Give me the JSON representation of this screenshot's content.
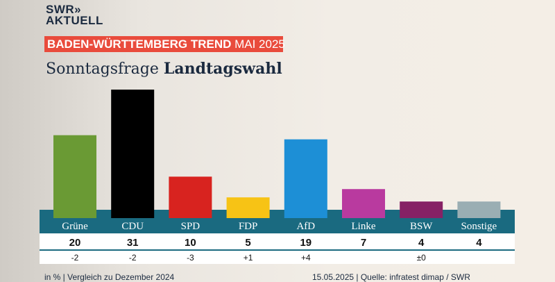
{
  "logo": {
    "line1": "SWR»",
    "line2": "AKTUELL"
  },
  "banner": {
    "bold": "BADEN-WÜRTTEMBERG TREND",
    "normal": "MAI 2025"
  },
  "title": {
    "normal": "Sonntagsfrage",
    "bold": "Landtagswahl"
  },
  "footer": {
    "left": "in % | Vergleich zu Dezember 2024",
    "right": "15.05.2025 | Quelle: infratest dimap / SWR"
  },
  "chart_data": {
    "type": "bar",
    "categories": [
      "Grüne",
      "CDU",
      "SPD",
      "FDP",
      "AfD",
      "Linke",
      "BSW",
      "Sonstige"
    ],
    "values": [
      20,
      31,
      10,
      5,
      19,
      7,
      4,
      4
    ],
    "changes": [
      "-2",
      "-2",
      "-3",
      "+1",
      "+4",
      "",
      "±0",
      ""
    ],
    "colors": [
      "#6a9a34",
      "#000000",
      "#d8231f",
      "#f7c315",
      "#1d8fd6",
      "#b93a9f",
      "#862165",
      "#9aaeb3"
    ],
    "band_color": "#1a6a80"
  }
}
